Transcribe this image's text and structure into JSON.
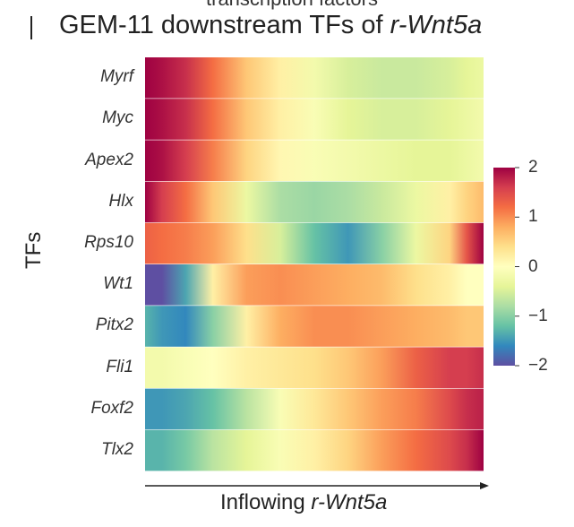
{
  "header": {
    "top_partial_text": "transcription factors",
    "title_prefix": "GEM-11 downstream TFs of ",
    "title_gene": "r-Wnt5a"
  },
  "chart_data": {
    "type": "heatmap",
    "title": "GEM-11 downstream TFs of r-Wnt5a",
    "ylabel": "TFs",
    "xlabel_prefix": "Inflowing ",
    "xlabel_gene": "r-Wnt5a",
    "rows": [
      "Myrf",
      "Myc",
      "Apex2",
      "Hlx",
      "Rps10",
      "Wt1",
      "Pitx2",
      "Fli1",
      "Foxf2",
      "Tlx2"
    ],
    "x_positions": [
      0,
      0.05,
      0.12,
      0.2,
      0.3,
      0.4,
      0.5,
      0.6,
      0.7,
      0.8,
      0.9,
      0.95,
      1
    ],
    "values": [
      [
        2,
        1.9,
        1.7,
        1.2,
        0.6,
        0.2,
        -0.2,
        -0.5,
        -0.6,
        -0.6,
        -0.5,
        -0.4,
        -0.3
      ],
      [
        2,
        1.9,
        1.7,
        1.2,
        0.6,
        0.2,
        -0.1,
        -0.4,
        -0.5,
        -0.5,
        -0.4,
        -0.3,
        -0.2
      ],
      [
        2,
        1.9,
        1.6,
        1.1,
        0.5,
        0.1,
        -0.1,
        -0.2,
        -0.3,
        -0.4,
        -0.4,
        -0.3,
        -0.2
      ],
      [
        2,
        1.6,
        1.2,
        0.6,
        -0.3,
        -0.8,
        -0.9,
        -0.8,
        -0.6,
        -0.3,
        0.2,
        0.5,
        0.7
      ],
      [
        1.3,
        1.2,
        1.1,
        0.9,
        0.4,
        -0.5,
        -1.2,
        -1.5,
        -1.0,
        -0.3,
        0.5,
        1.4,
        2.0
      ],
      [
        -2,
        -2,
        -1.4,
        0.2,
        0.9,
        1.0,
        0.9,
        0.8,
        0.7,
        0.4,
        0.2,
        0.0,
        0.0
      ],
      [
        -1.3,
        -1.5,
        -1.6,
        -1.0,
        0.2,
        0.8,
        1.0,
        1.0,
        0.9,
        0.8,
        0.7,
        0.6,
        0.6
      ],
      [
        -0.2,
        -0.2,
        -0.1,
        0.0,
        0.2,
        0.3,
        0.4,
        0.6,
        0.9,
        1.3,
        1.6,
        1.6,
        1.7
      ],
      [
        -1.5,
        -1.5,
        -1.4,
        -1.2,
        -0.7,
        -0.1,
        0.3,
        0.6,
        0.9,
        1.1,
        1.5,
        1.7,
        1.8
      ],
      [
        -1.3,
        -1.3,
        -1.1,
        -0.7,
        -0.4,
        -0.1,
        0.2,
        0.5,
        0.9,
        1.2,
        1.5,
        1.7,
        2.0
      ]
    ],
    "colorbar": {
      "range": [
        -2,
        2
      ],
      "ticks": [
        2,
        1,
        0,
        -1,
        -2
      ],
      "tick_labels": [
        "2",
        "1",
        "0",
        "−1",
        "−2"
      ],
      "colors": [
        "#5e4fa2",
        "#3288bd",
        "#66c2a5",
        "#abdda4",
        "#e6f598",
        "#ffffbf",
        "#fee08b",
        "#fdae61",
        "#f46d43",
        "#d53e4f",
        "#9e0142"
      ]
    },
    "legend_position": "right",
    "grid": false
  }
}
